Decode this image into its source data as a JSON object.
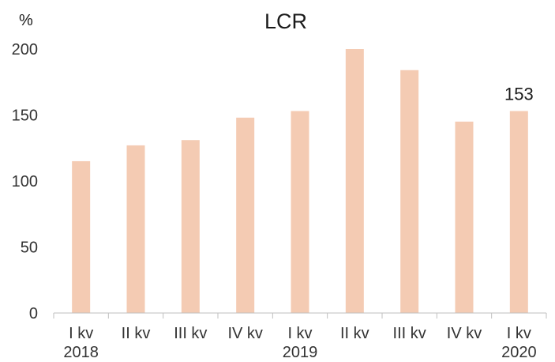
{
  "chart_data": {
    "type": "bar",
    "title": "LCR",
    "ylabel": "%",
    "ylim": [
      0,
      200
    ],
    "yticks": [
      "0",
      "50",
      "100",
      "150",
      "200"
    ],
    "categories": [
      "I kv",
      "II kv",
      "III kv",
      "IV kv",
      "I kv",
      "II kv",
      "III kv",
      "IV kv",
      "I kv"
    ],
    "year_labels": [
      "2018",
      "",
      "",
      "",
      "2019",
      "",
      "",
      "",
      "2020"
    ],
    "values": [
      115,
      127,
      131,
      148,
      153,
      200,
      184,
      145,
      153
    ],
    "data_labels": [
      "",
      "",
      "",
      "",
      "",
      "",
      "",
      "",
      "153"
    ],
    "bar_color": "#f4cbb3",
    "grid": false
  }
}
